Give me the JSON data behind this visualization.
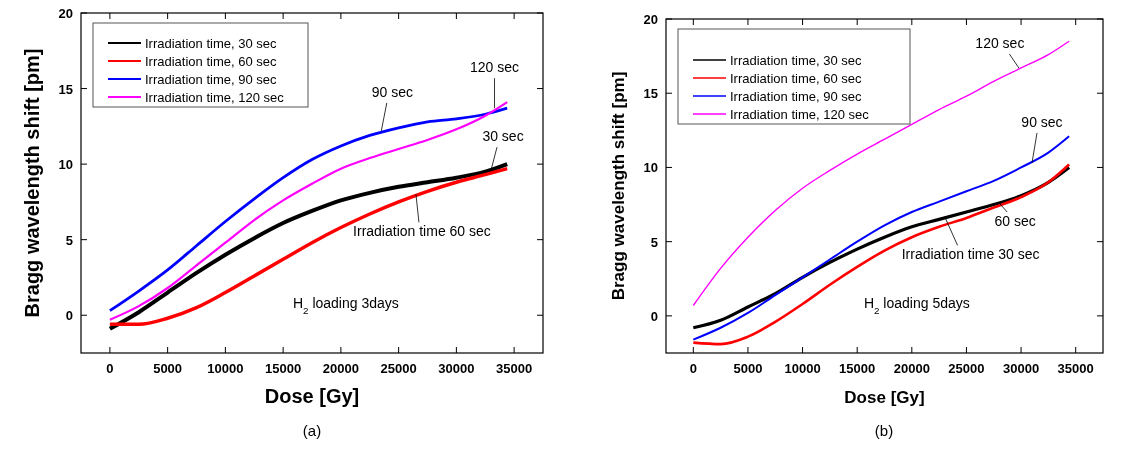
{
  "chart_data": [
    {
      "type": "line",
      "xlabel": "Dose [Gy]",
      "ylabel": "Bragg wavelength shift [pm]",
      "x": [
        0,
        2500,
        5000,
        7500,
        10000,
        12500,
        15000,
        17500,
        20000,
        22500,
        25000,
        27500,
        30000,
        32500,
        34400
      ],
      "xlim": [
        -2500,
        37500
      ],
      "xticks": [
        0,
        5000,
        10000,
        15000,
        20000,
        25000,
        30000,
        35000
      ],
      "ylim": [
        -2.5,
        20
      ],
      "yticks": [
        0,
        5,
        10,
        15,
        20
      ],
      "legend": "top left",
      "grid": false,
      "line_style": "solid",
      "marker": "none",
      "series": [
        {
          "name": "Irradiation time, 30 sec",
          "color": "#000000",
          "values": [
            -0.9,
            0.2,
            1.5,
            2.8,
            4.0,
            5.1,
            6.1,
            6.9,
            7.6,
            8.1,
            8.5,
            8.8,
            9.1,
            9.5,
            10.0
          ]
        },
        {
          "name": "Irradiation time, 60 sec",
          "color": "#ff0000",
          "values": [
            -0.6,
            -0.6,
            -0.2,
            0.5,
            1.5,
            2.6,
            3.7,
            4.8,
            5.8,
            6.7,
            7.5,
            8.2,
            8.8,
            9.3,
            9.7
          ]
        },
        {
          "name": "Irradiation time, 90 sec",
          "color": "#0000ff",
          "values": [
            0.3,
            1.6,
            3.0,
            4.6,
            6.2,
            7.7,
            9.1,
            10.3,
            11.2,
            11.9,
            12.4,
            12.8,
            13.0,
            13.3,
            13.7
          ]
        },
        {
          "name": "Irradiation time, 120 sec",
          "color": "#ff00ff",
          "values": [
            -0.3,
            0.6,
            1.8,
            3.3,
            4.8,
            6.3,
            7.6,
            8.7,
            9.7,
            10.4,
            11.0,
            11.6,
            12.3,
            13.2,
            14.1
          ]
        }
      ],
      "annotations": [
        {
          "text": "90 sec",
          "x": 23500,
          "y": 12.2
        },
        {
          "text": "120 sec",
          "x": 33300,
          "y": 13.7
        },
        {
          "text": "30 sec",
          "x": 33000,
          "y": 9.6
        },
        {
          "text": "Irradiation time 60 sec",
          "x": 26500,
          "y": 8.0
        },
        "H$_{2}$ loading 3days",
        "(a)"
      ]
    },
    {
      "type": "line",
      "xlabel": "Dose [Gy]",
      "ylabel": "Bragg wavelength shift [pm]",
      "x": [
        0,
        2500,
        5000,
        7500,
        10000,
        12500,
        15000,
        17500,
        20000,
        22500,
        25000,
        27500,
        30000,
        32500,
        34400
      ],
      "xlim": [
        -2500,
        37500
      ],
      "xticks": [
        0,
        5000,
        10000,
        15000,
        20000,
        25000,
        30000,
        35000
      ],
      "ylim": [
        -2.5,
        20
      ],
      "yticks": [
        0,
        5,
        10,
        15,
        20
      ],
      "legend": "top left",
      "grid": false,
      "line_style": "solid",
      "marker": "none",
      "series": [
        {
          "name": "Irradiation time, 30 sec",
          "color": "#000000",
          "values": [
            -0.8,
            -0.3,
            0.6,
            1.5,
            2.6,
            3.6,
            4.5,
            5.3,
            6.0,
            6.5,
            7.0,
            7.5,
            8.1,
            9.0,
            10.0
          ]
        },
        {
          "name": "Irradiation time, 60 sec",
          "color": "#ff0000",
          "values": [
            -1.8,
            -1.9,
            -1.4,
            -0.4,
            0.8,
            2.1,
            3.3,
            4.4,
            5.3,
            6.0,
            6.6,
            7.3,
            8.0,
            9.0,
            10.2
          ]
        },
        {
          "name": "Irradiation time, 90 sec",
          "color": "#0000ff",
          "values": [
            -1.6,
            -0.8,
            0.2,
            1.4,
            2.6,
            3.8,
            5.0,
            6.1,
            7.0,
            7.7,
            8.4,
            9.1,
            10.0,
            11.0,
            12.1
          ]
        },
        {
          "name": "Irradiation time, 120 sec",
          "color": "#ff00ff",
          "values": [
            0.7,
            3.2,
            5.3,
            7.1,
            8.6,
            9.8,
            10.9,
            11.9,
            12.9,
            13.9,
            14.8,
            15.8,
            16.7,
            17.6,
            18.5
          ]
        }
      ],
      "annotations": [
        {
          "text": "120 sec",
          "x": 29800,
          "y": 16.7
        },
        {
          "text": "90 sec",
          "x": 31000,
          "y": 10.3
        },
        {
          "text": "60 sec",
          "x": 28000,
          "y": 7.6
        },
        {
          "text": "Irradiation time 30 sec",
          "x": 23000,
          "y": 6.7
        },
        "H$_{2}$ loading 5days",
        "(b)"
      ]
    }
  ]
}
